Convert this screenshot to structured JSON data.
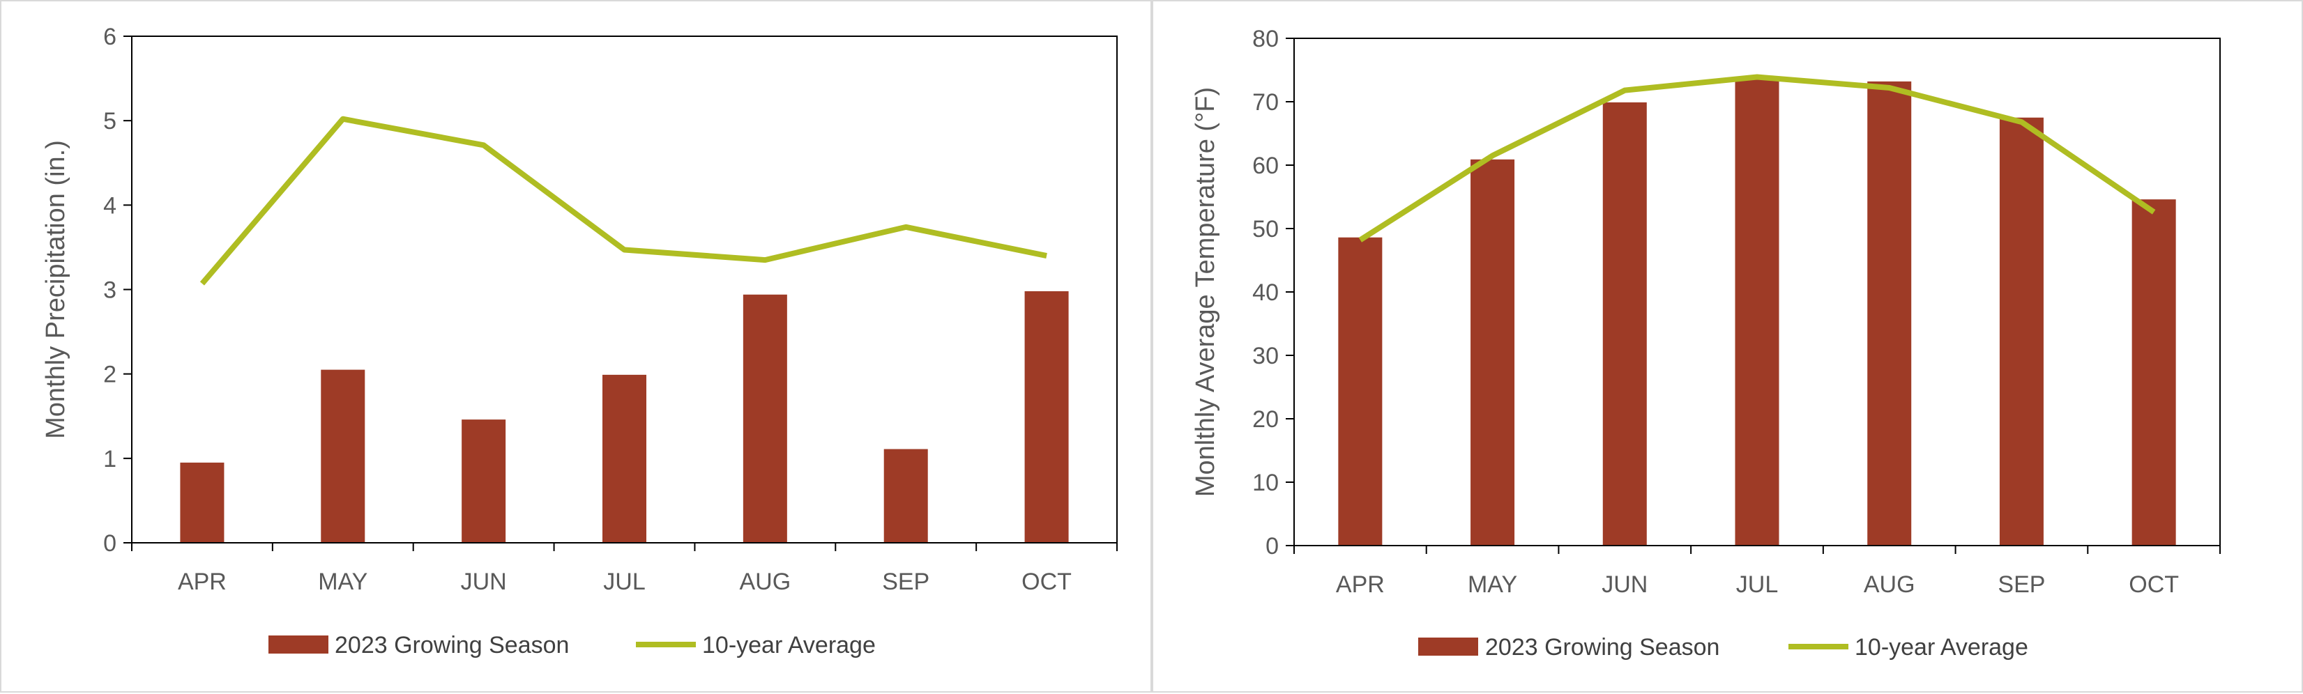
{
  "colors": {
    "bar": "#9e3b26",
    "line": "#afbd22",
    "axis": "#000000",
    "text": "#595959"
  },
  "legend": {
    "bar_label": "2023 Growing Season",
    "line_label": "10-year Average"
  },
  "chart_data": [
    {
      "type": "bar+line",
      "categories": [
        "APR",
        "MAY",
        "JUN",
        "JUL",
        "AUG",
        "SEP",
        "OCT"
      ],
      "series": [
        {
          "name": "2023 Growing Season",
          "type": "bar",
          "values": [
            0.95,
            2.05,
            1.46,
            1.99,
            2.94,
            1.11,
            2.98
          ]
        },
        {
          "name": "10-year Average",
          "type": "line",
          "values": [
            3.07,
            5.02,
            4.71,
            3.47,
            3.35,
            3.74,
            3.4
          ]
        }
      ],
      "ylabel": "Monthly Precipitation (in.)",
      "ylim": [
        0,
        6
      ],
      "yticks": [
        0,
        1,
        2,
        3,
        4,
        5,
        6
      ],
      "grid": false,
      "legend_position": "bottom-center"
    },
    {
      "type": "bar+line",
      "categories": [
        "APR",
        "MAY",
        "JUN",
        "JUL",
        "AUG",
        "SEP",
        "OCT"
      ],
      "series": [
        {
          "name": "2023 Growing Season",
          "type": "bar",
          "values": [
            48.6,
            60.9,
            69.9,
            73.5,
            73.2,
            67.5,
            54.6
          ]
        },
        {
          "name": "10-year Average",
          "type": "line",
          "values": [
            48.2,
            61.5,
            71.8,
            73.9,
            72.2,
            66.8,
            52.6
          ]
        }
      ],
      "ylabel": "Monlthly Average Temperature (°F)",
      "ylim": [
        0,
        80
      ],
      "yticks": [
        0,
        10,
        20,
        30,
        40,
        50,
        60,
        70,
        80
      ],
      "grid": false,
      "legend_position": "bottom-center"
    }
  ]
}
